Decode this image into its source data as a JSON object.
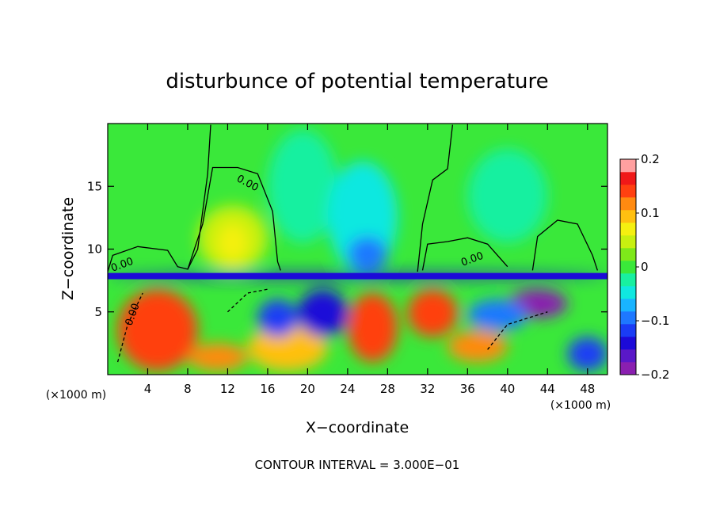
{
  "chart_data": {
    "type": "heatmap",
    "title": "disturbunce of potential temperature",
    "xlabel": "X−coordinate",
    "ylabel": "Z−coordinate",
    "x_unit_label": "(×1000 m)",
    "y_unit_label": "(×1000 m)",
    "xlim": [
      0,
      50
    ],
    "ylim": [
      0,
      20
    ],
    "x_ticks": [
      4,
      8,
      12,
      16,
      20,
      24,
      28,
      32,
      36,
      40,
      44,
      48
    ],
    "y_ticks": [
      5,
      10,
      15
    ],
    "colorbar": {
      "range": [
        -0.2,
        0.2
      ],
      "ticks": [
        {
          "value": 0.2,
          "label": "0.2"
        },
        {
          "value": 0.1,
          "label": "0.1"
        },
        {
          "value": 0.0,
          "label": "0"
        },
        {
          "value": -0.1,
          "label": "−0.1"
        },
        {
          "value": -0.2,
          "label": "−0.2"
        }
      ],
      "levels": [
        {
          "from": -0.2,
          "to": -0.175,
          "color": "#8a1fb0"
        },
        {
          "from": -0.175,
          "to": -0.15,
          "color": "#5a18c8"
        },
        {
          "from": -0.15,
          "to": -0.125,
          "color": "#1c0ad8"
        },
        {
          "from": -0.125,
          "to": -0.1,
          "color": "#1a3cf5"
        },
        {
          "from": -0.1,
          "to": -0.075,
          "color": "#1e78ff"
        },
        {
          "from": -0.075,
          "to": -0.05,
          "color": "#19b4ff"
        },
        {
          "from": -0.05,
          "to": -0.025,
          "color": "#10e8e0"
        },
        {
          "from": -0.025,
          "to": 0.0,
          "color": "#18f0a0"
        },
        {
          "from": 0.0,
          "to": 0.025,
          "color": "#3ae83a"
        },
        {
          "from": 0.025,
          "to": 0.05,
          "color": "#7ee81a"
        },
        {
          "from": 0.05,
          "to": 0.075,
          "color": "#c8f010"
        },
        {
          "from": 0.075,
          "to": 0.1,
          "color": "#f5f010"
        },
        {
          "from": 0.1,
          "to": 0.125,
          "color": "#ffc010"
        },
        {
          "from": 0.125,
          "to": 0.15,
          "color": "#ff8a10"
        },
        {
          "from": 0.15,
          "to": 0.175,
          "color": "#ff4010"
        },
        {
          "from": 0.175,
          "to": 0.2,
          "color": "#f01818"
        },
        {
          "from": 0.2,
          "to": 0.225,
          "color": "#ffa0a0"
        }
      ]
    },
    "contour_labels": [
      "0.00",
      "0.00",
      "0.00",
      "0.00"
    ],
    "footnote": "CONTOUR INTERVAL = 3.000E−01",
    "background_value": 0.0,
    "regions": [
      {
        "x": [
          1,
          9
        ],
        "z": [
          0.3,
          6.8
        ],
        "value": 0.15
      },
      {
        "x": [
          9,
          16
        ],
        "z": [
          8.2,
          13.5
        ],
        "value": 0.06
      },
      {
        "x": [
          11,
          14
        ],
        "z": [
          9.0,
          12.0
        ],
        "value": 0.08
      },
      {
        "x": [
          16,
          23
        ],
        "z": [
          10.5,
          19.5
        ],
        "value": -0.02
      },
      {
        "x": [
          22,
          29
        ],
        "z": [
          8.2,
          17.0
        ],
        "value": -0.035
      },
      {
        "x": [
          24,
          28
        ],
        "z": [
          8.2,
          11.0
        ],
        "value": -0.09
      },
      {
        "x": [
          36,
          44
        ],
        "z": [
          10.5,
          18.0
        ],
        "value": -0.01
      },
      {
        "x": [
          0,
          50
        ],
        "z": [
          7.6,
          8.1
        ],
        "value": -0.15
      },
      {
        "x": [
          8,
          14
        ],
        "z": [
          0.3,
          2.5
        ],
        "value": 0.14
      },
      {
        "x": [
          14,
          22
        ],
        "z": [
          0.3,
          4.0
        ],
        "value": 0.12
      },
      {
        "x": [
          15,
          19
        ],
        "z": [
          3.0,
          6.0
        ],
        "value": -0.11
      },
      {
        "x": [
          19,
          24
        ],
        "z": [
          3.0,
          6.8
        ],
        "value": -0.15
      },
      {
        "x": [
          24,
          29
        ],
        "z": [
          1.0,
          6.5
        ],
        "value": 0.17
      },
      {
        "x": [
          30,
          35
        ],
        "z": [
          3.0,
          6.8
        ],
        "value": 0.15
      },
      {
        "x": [
          34,
          40
        ],
        "z": [
          1.0,
          3.5
        ],
        "value": 0.14
      },
      {
        "x": [
          40,
          46
        ],
        "z": [
          4.5,
          6.8
        ],
        "value": -0.18
      },
      {
        "x": [
          46,
          50
        ],
        "z": [
          0.3,
          3.0
        ],
        "value": -0.12
      },
      {
        "x": [
          36,
          42
        ],
        "z": [
          3.5,
          6.0
        ],
        "value": -0.1
      }
    ]
  }
}
